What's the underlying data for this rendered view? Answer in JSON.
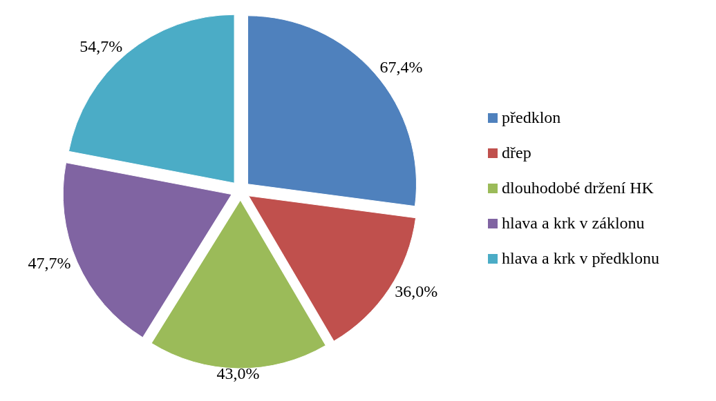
{
  "chart_data": {
    "type": "pie",
    "categories": [
      "předklon",
      "dřep",
      "dlouhodobé držení HK",
      "hlava a krk v záklonu",
      "hlava a krk v předklonu"
    ],
    "values": [
      67.4,
      36.0,
      43.0,
      47.7,
      54.7
    ],
    "value_labels": [
      "67,4%",
      "36,0%",
      "43,0%",
      "47,7%",
      "54,7%"
    ],
    "colors": [
      "#4f81bd",
      "#c0504d",
      "#9bbb59",
      "#8064a2",
      "#4bacc6"
    ],
    "legend": "right"
  }
}
